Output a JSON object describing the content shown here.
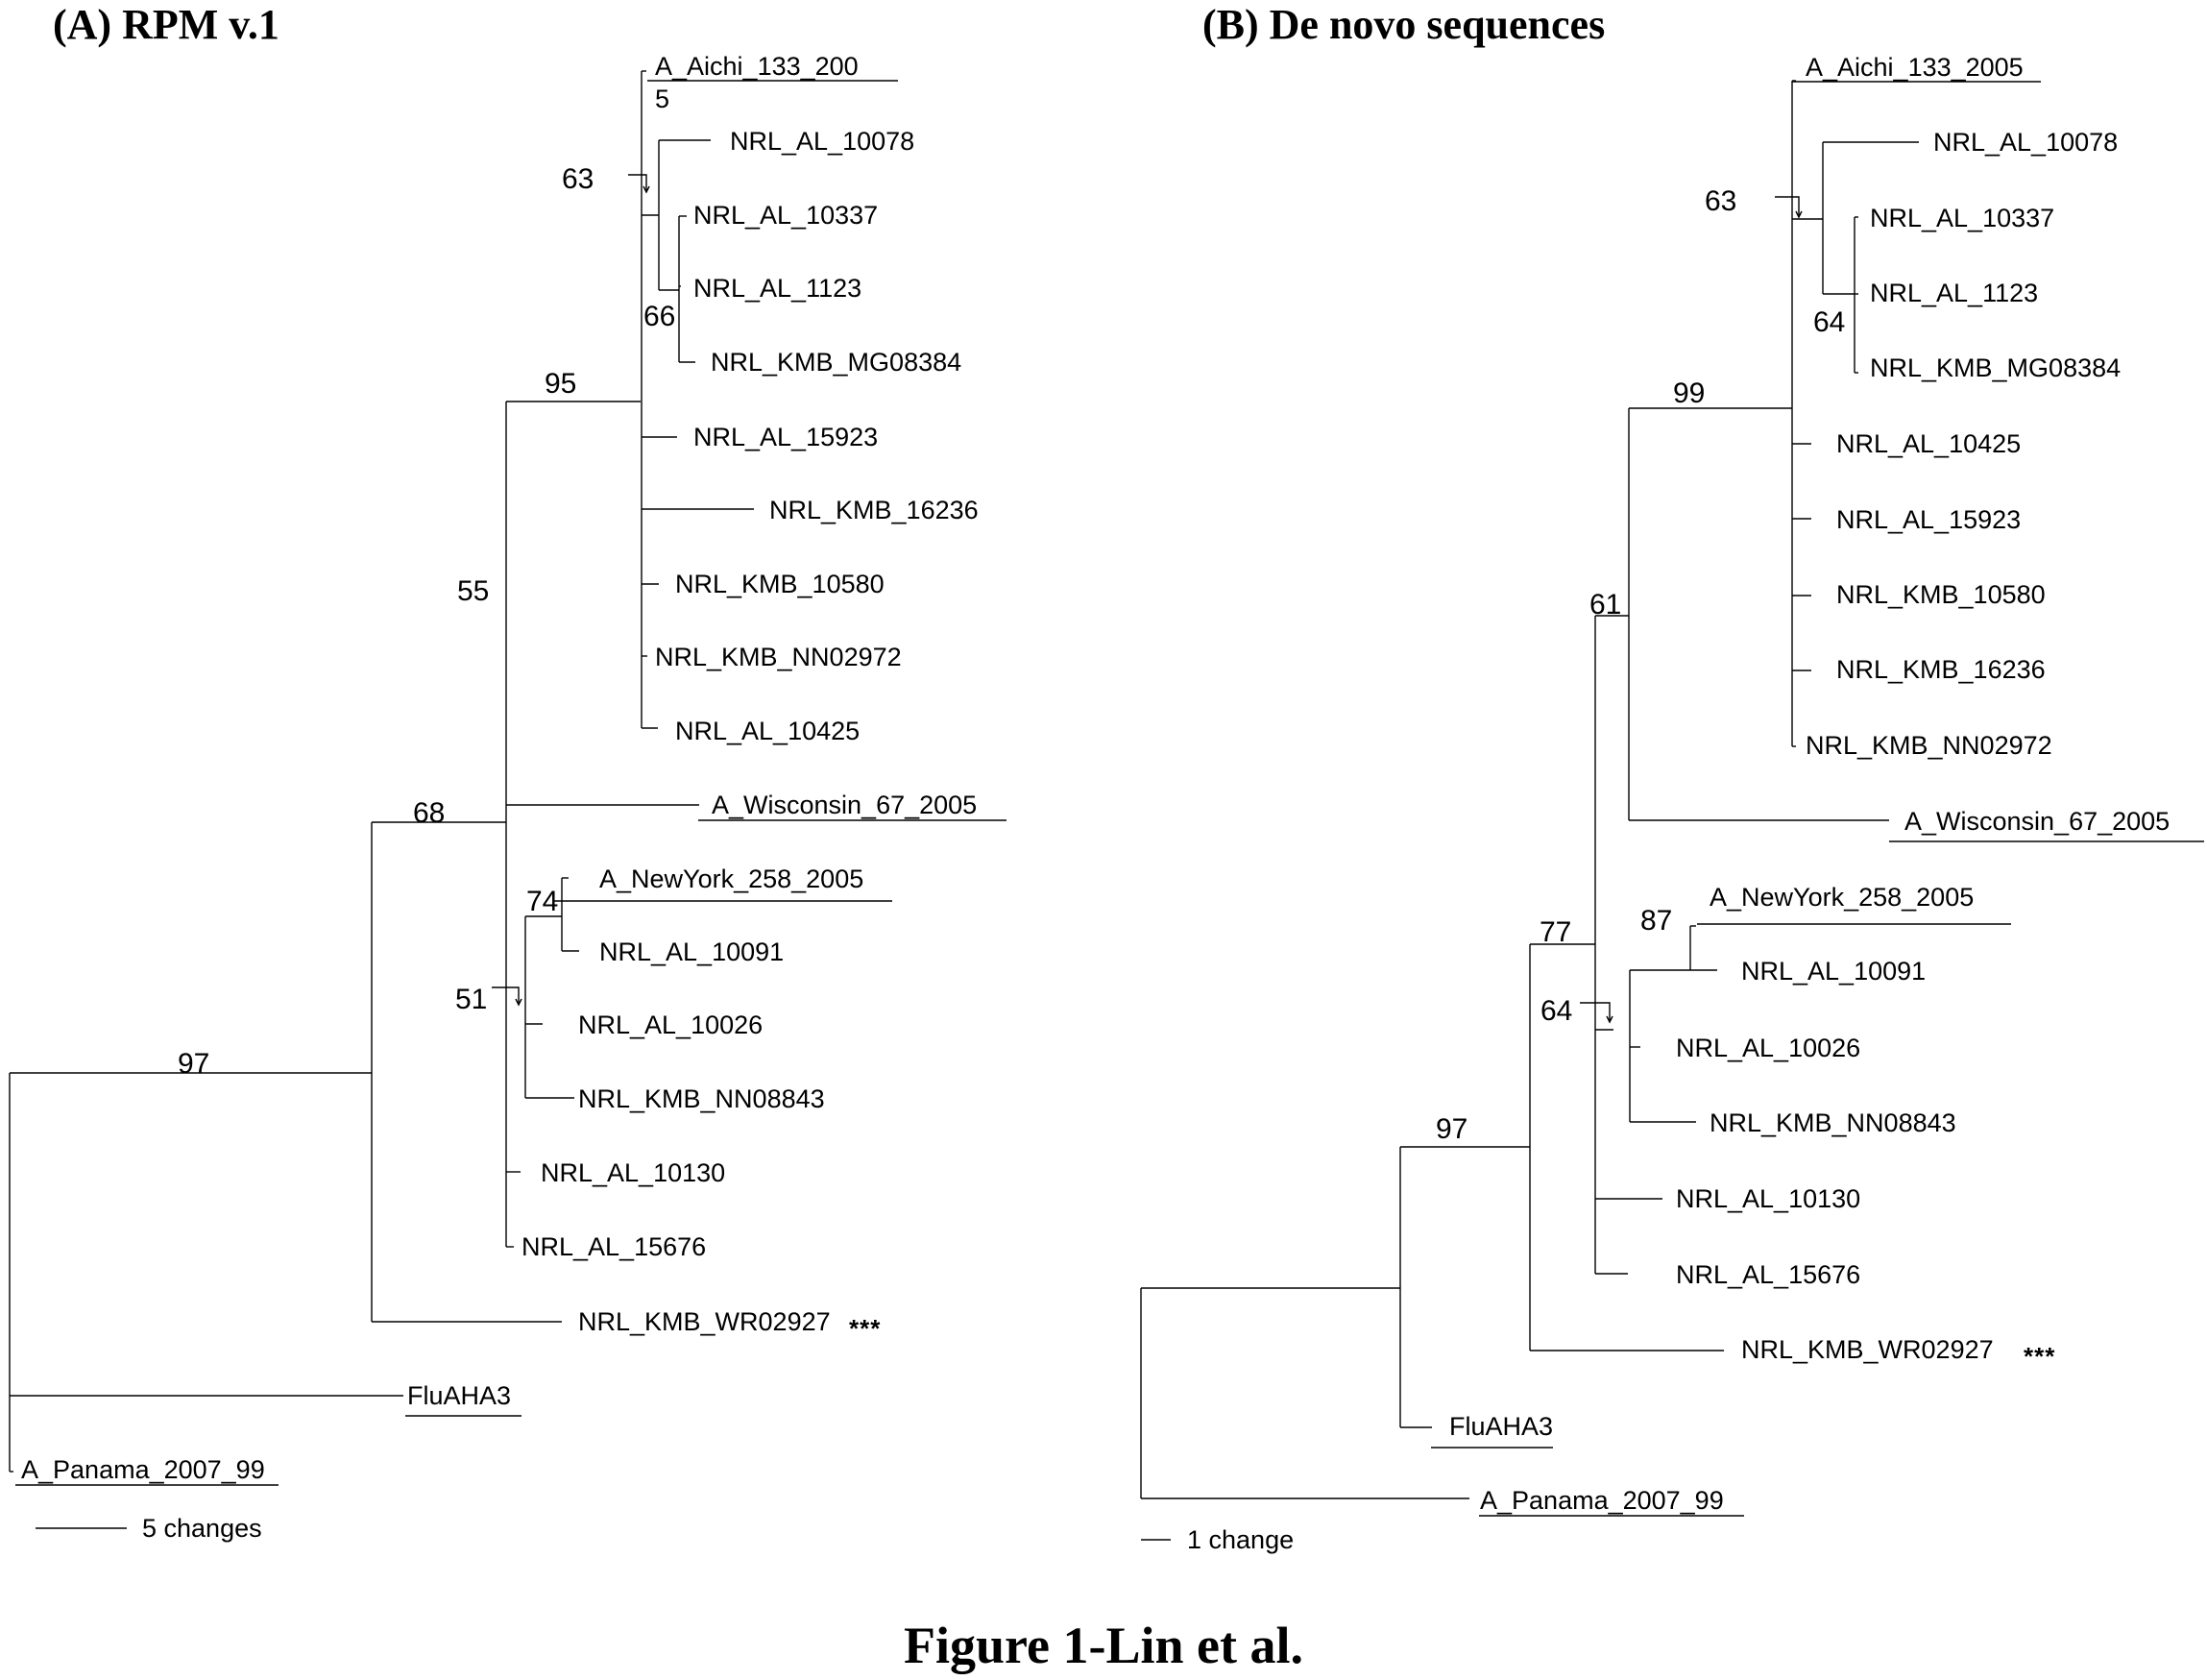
{
  "figure": {
    "caption": "Figure 1-Lin et al.",
    "panels": [
      {
        "title": "(A) RPM v.1",
        "scale_label": "5 changes",
        "leaves": [
          {
            "label": "A_Aichi_133_200",
            "underlined": true
          },
          {
            "label": "5",
            "underlined": false
          },
          {
            "label": "NRL_AL_10078",
            "underlined": false
          },
          {
            "label": "NRL_AL_10337",
            "underlined": false
          },
          {
            "label": "NRL_AL_1123",
            "underlined": false
          },
          {
            "label": "NRL_KMB_MG08384",
            "underlined": false
          },
          {
            "label": "NRL_AL_15923",
            "underlined": false
          },
          {
            "label": "NRL_KMB_16236",
            "underlined": false
          },
          {
            "label": "NRL_KMB_10580",
            "underlined": false
          },
          {
            "label": "NRL_KMB_NN02972",
            "underlined": false
          },
          {
            "label": "NRL_AL_10425",
            "underlined": false
          },
          {
            "label": "A_Wisconsin_67_2005",
            "underlined": true
          },
          {
            "label": "A_NewYork_258_2005",
            "underlined": true
          },
          {
            "label": "NRL_AL_10091",
            "underlined": false
          },
          {
            "label": "NRL_AL_10026",
            "underlined": false
          },
          {
            "label": "NRL_KMB_NN08843",
            "underlined": false
          },
          {
            "label": "NRL_AL_10130",
            "underlined": false
          },
          {
            "label": "NRL_AL_15676",
            "underlined": false
          },
          {
            "label": "NRL_KMB_WR02927",
            "underlined": false
          },
          {
            "label": "FluAHA3",
            "underlined": true
          },
          {
            "label": "A_Panama_2007_99",
            "underlined": true
          }
        ],
        "bootstrap": [
          "63",
          "66",
          "95",
          "55",
          "68",
          "74",
          "51",
          "97"
        ],
        "marker": "***"
      },
      {
        "title": "(B) De novo sequences",
        "scale_label": "1 change",
        "leaves": [
          {
            "label": "A_Aichi_133_2005",
            "underlined": true
          },
          {
            "label": "NRL_AL_10078",
            "underlined": false
          },
          {
            "label": "NRL_AL_10337",
            "underlined": false
          },
          {
            "label": "NRL_AL_1123",
            "underlined": false
          },
          {
            "label": "NRL_KMB_MG08384",
            "underlined": false
          },
          {
            "label": "NRL_AL_10425",
            "underlined": false
          },
          {
            "label": "NRL_AL_15923",
            "underlined": false
          },
          {
            "label": "NRL_KMB_10580",
            "underlined": false
          },
          {
            "label": "NRL_KMB_16236",
            "underlined": false
          },
          {
            "label": "NRL_KMB_NN02972",
            "underlined": false
          },
          {
            "label": "A_Wisconsin_67_2005",
            "underlined": true
          },
          {
            "label": "A_NewYork_258_2005",
            "underlined": true
          },
          {
            "label": "NRL_AL_10091",
            "underlined": false
          },
          {
            "label": "NRL_AL_10026",
            "underlined": false
          },
          {
            "label": "NRL_KMB_NN08843",
            "underlined": false
          },
          {
            "label": "NRL_AL_10130",
            "underlined": false
          },
          {
            "label": "NRL_AL_15676",
            "underlined": false
          },
          {
            "label": "NRL_KMB_WR02927",
            "underlined": false
          },
          {
            "label": "FluAHA3",
            "underlined": true
          },
          {
            "label": "A_Panama_2007_99",
            "underlined": true
          }
        ],
        "bootstrap": [
          "63",
          "64",
          "99",
          "61",
          "87",
          "64",
          "77",
          "97"
        ],
        "marker": "***"
      }
    ]
  }
}
